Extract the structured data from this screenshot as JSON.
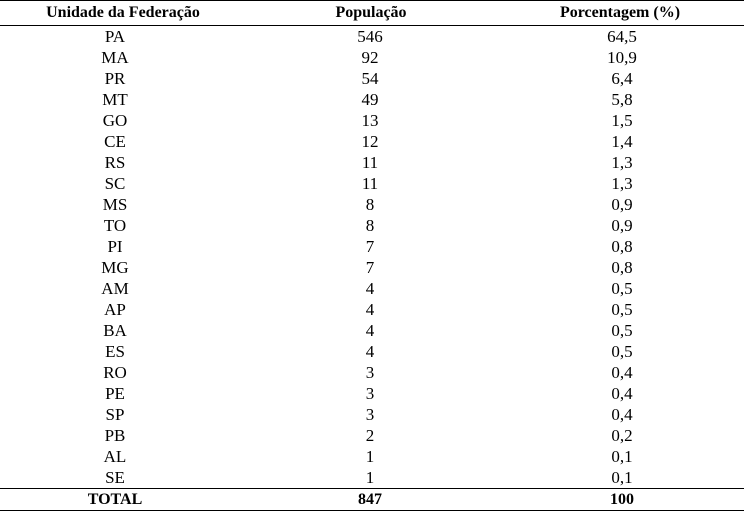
{
  "table": {
    "headers": [
      "Unidade da Federação",
      "População",
      "Porcentagem (%)"
    ],
    "rows": [
      [
        "PA",
        "546",
        "64,5"
      ],
      [
        "MA",
        "92",
        "10,9"
      ],
      [
        "PR",
        "54",
        "6,4"
      ],
      [
        "MT",
        "49",
        "5,8"
      ],
      [
        "GO",
        "13",
        "1,5"
      ],
      [
        "CE",
        "12",
        "1,4"
      ],
      [
        "RS",
        "11",
        "1,3"
      ],
      [
        "SC",
        "11",
        "1,3"
      ],
      [
        "MS",
        "8",
        "0,9"
      ],
      [
        "TO",
        "8",
        "0,9"
      ],
      [
        "PI",
        "7",
        "0,8"
      ],
      [
        "MG",
        "7",
        "0,8"
      ],
      [
        "AM",
        "4",
        "0,5"
      ],
      [
        "AP",
        "4",
        "0,5"
      ],
      [
        "BA",
        "4",
        "0,5"
      ],
      [
        "ES",
        "4",
        "0,5"
      ],
      [
        "RO",
        "3",
        "0,4"
      ],
      [
        "PE",
        "3",
        "0,4"
      ],
      [
        "SP",
        "3",
        "0,4"
      ],
      [
        "PB",
        "2",
        "0,2"
      ],
      [
        "AL",
        "1",
        "0,1"
      ],
      [
        "SE",
        "1",
        "0,1"
      ]
    ],
    "total": [
      "TOTAL",
      "847",
      "100"
    ]
  }
}
